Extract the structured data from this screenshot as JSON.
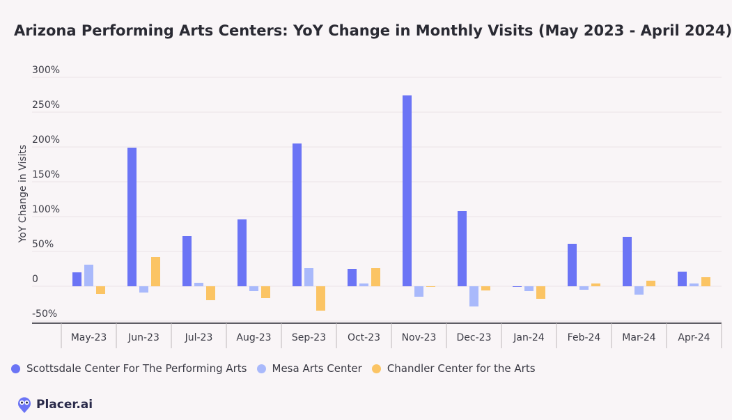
{
  "chart_data": {
    "type": "bar",
    "title": "Arizona Performing Arts Centers: YoY Change in Monthly Visits (May 2023 - April 2024)",
    "ylabel": "YoY Change in Visits",
    "xlabel": "",
    "ylim": [
      -50,
      300
    ],
    "yticks": [
      "300%",
      "250%",
      "200%",
      "150%",
      "100%",
      "50%",
      "0",
      "-50%"
    ],
    "ytick_values": [
      300,
      250,
      200,
      150,
      100,
      50,
      0,
      -50
    ],
    "categories": [
      "May-23",
      "Jun-23",
      "Jul-23",
      "Aug-23",
      "Sep-23",
      "Oct-23",
      "Nov-23",
      "Dec-23",
      "Jan-24",
      "Feb-24",
      "Mar-24",
      "Apr-24"
    ],
    "series": [
      {
        "name": "Scottsdale Center For The Performing Arts",
        "color": "#6b74f5",
        "values": [
          20,
          199,
          72,
          96,
          205,
          25,
          274,
          108,
          -1,
          61,
          71,
          21
        ]
      },
      {
        "name": "Mesa Arts Center",
        "color": "#a9b9fb",
        "values": [
          31,
          -9,
          5,
          -7,
          26,
          4,
          -15,
          -29,
          -7,
          -5,
          -12,
          4
        ]
      },
      {
        "name": "Chandler Center for the Arts",
        "color": "#fbc464",
        "values": [
          -11,
          42,
          -20,
          -17,
          -35,
          26,
          -1,
          -6,
          -18,
          4,
          8,
          13
        ]
      }
    ],
    "grid": true,
    "legend_position": "bottom-left"
  },
  "brand": {
    "name": "Placer.ai"
  }
}
